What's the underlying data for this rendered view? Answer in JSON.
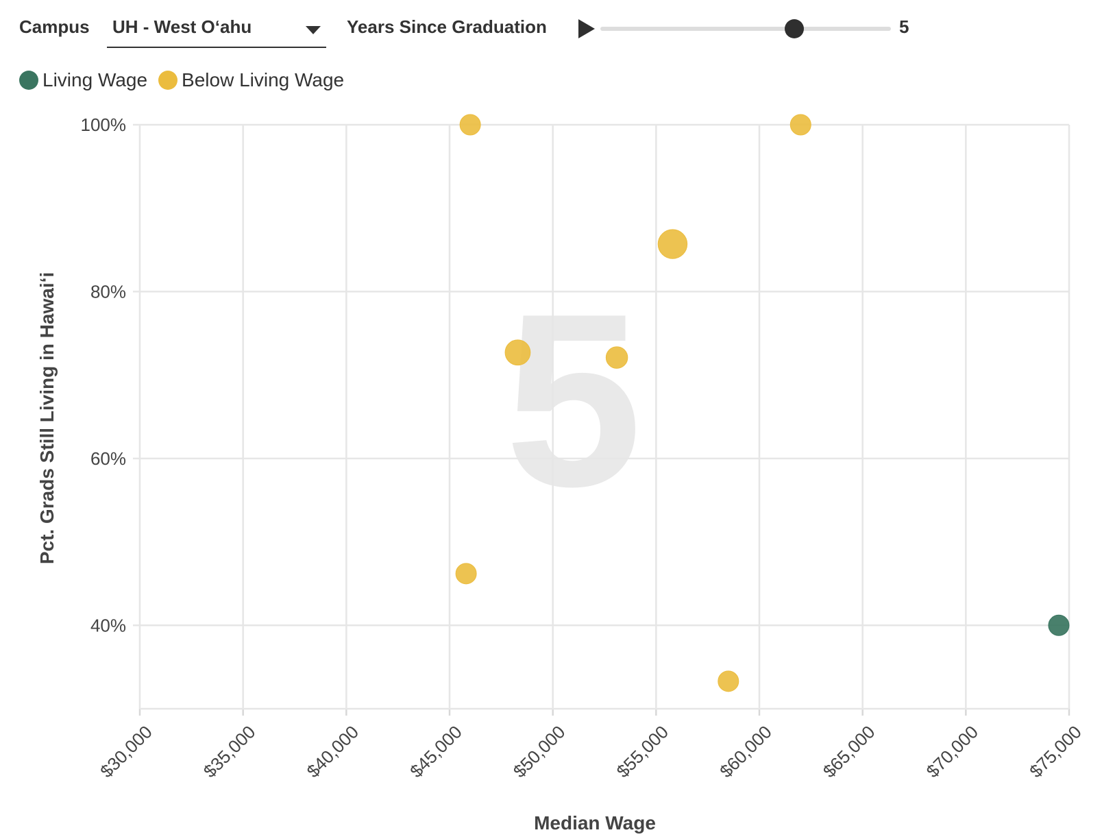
{
  "controls": {
    "campus_label": "Campus",
    "campus_value": "UH - West Oʻahu",
    "years_label": "Years Since Graduation",
    "years_value": "5",
    "years_min": 1,
    "years_max": 7,
    "years_current": 5
  },
  "legend": [
    {
      "label": "Living Wage",
      "color": "#3a7560"
    },
    {
      "label": "Below Living Wage",
      "color": "#ebbc3e"
    }
  ],
  "chart_data": {
    "type": "scatter",
    "xlabel": "Median Wage",
    "ylabel": "Pct. Grads Still Living in Hawaiʻi",
    "xlim": [
      30000,
      75000
    ],
    "ylim": [
      30,
      100
    ],
    "x_ticks": [
      30000,
      35000,
      40000,
      45000,
      50000,
      55000,
      60000,
      65000,
      70000,
      75000
    ],
    "x_tick_labels": [
      "$30,000",
      "$35,000",
      "$40,000",
      "$45,000",
      "$50,000",
      "$55,000",
      "$60,000",
      "$65,000",
      "$70,000",
      "$75,000"
    ],
    "y_ticks": [
      40,
      60,
      80,
      100
    ],
    "y_tick_labels": [
      "40%",
      "60%",
      "80%",
      "100%"
    ],
    "grid": true,
    "watermark": "5",
    "series": [
      {
        "name": "Living Wage",
        "color": "#3a7560",
        "points": [
          {
            "x": 74500,
            "y": 40,
            "size": 1
          }
        ]
      },
      {
        "name": "Below Living Wage",
        "color": "#ebbc3e",
        "points": [
          {
            "x": 46000,
            "y": 100,
            "size": 1
          },
          {
            "x": 62000,
            "y": 100,
            "size": 1
          },
          {
            "x": 55800,
            "y": 85.7,
            "size": 2
          },
          {
            "x": 48300,
            "y": 72.7,
            "size": 1.5
          },
          {
            "x": 53100,
            "y": 72.1,
            "size": 1.1
          },
          {
            "x": 45800,
            "y": 46.2,
            "size": 1
          },
          {
            "x": 58500,
            "y": 33.3,
            "size": 1
          }
        ]
      }
    ]
  }
}
